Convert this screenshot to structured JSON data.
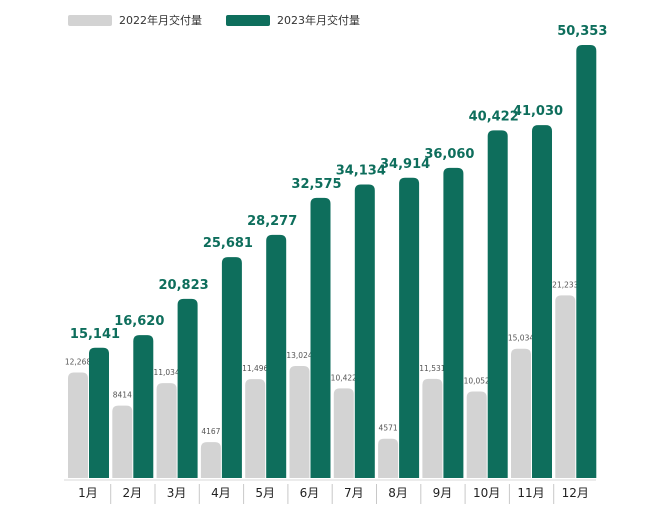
{
  "chart_data": {
    "type": "bar",
    "categories": [
      "1月",
      "2月",
      "3月",
      "4月",
      "5月",
      "6月",
      "7月",
      "8月",
      "9月",
      "10月",
      "11月",
      "12月"
    ],
    "series": [
      {
        "name": "2022年月交付量",
        "color": "#d3d3d3",
        "values": [
          12268,
          8414,
          11034,
          4167,
          11496,
          13024,
          10422,
          4571,
          11531,
          10052,
          15034,
          21233
        ],
        "labels": [
          "12,268",
          "8414",
          "11,034",
          "4167",
          "11,496",
          "13,024",
          "10,422",
          "4571",
          "11,531",
          "10,052",
          "15,034",
          "21,233"
        ]
      },
      {
        "name": "2023年月交付量",
        "color": "#0e6e5c",
        "values": [
          15141,
          16620,
          20823,
          25681,
          28277,
          32575,
          34134,
          34914,
          36060,
          40422,
          41030,
          50353
        ],
        "labels": [
          "15,141",
          "16,620",
          "20,823",
          "25,681",
          "28,277",
          "32,575",
          "34,134",
          "34,914",
          "36,060",
          "40,422",
          "41,030",
          "50,353"
        ]
      }
    ],
    "ylim": [
      0,
      50353
    ],
    "grid": false,
    "legend_position": "top-left",
    "xlabel": "",
    "ylabel": "",
    "title": ""
  }
}
